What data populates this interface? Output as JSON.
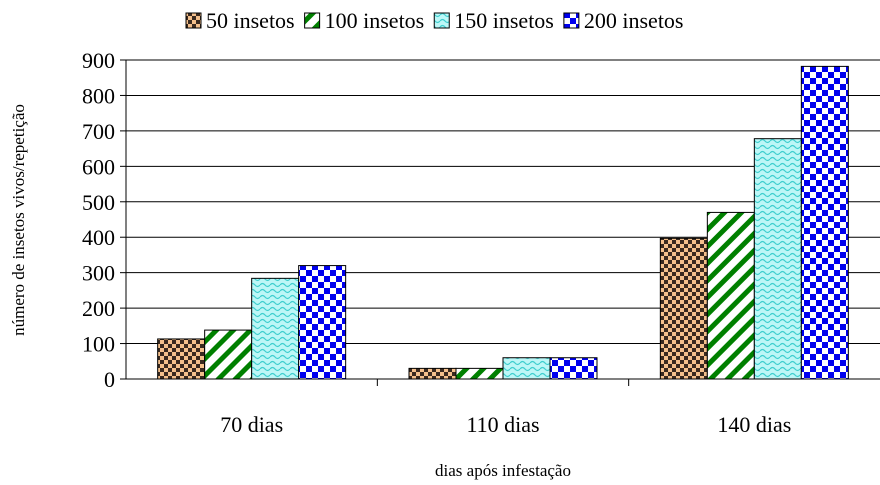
{
  "chart_data": {
    "type": "bar",
    "categories": [
      "70 dias",
      "110 dias",
      "140 dias"
    ],
    "series": [
      {
        "name": "50 insetos",
        "values": [
          113,
          30,
          397
        ],
        "color": "#f4c08c",
        "pattern": "checker-dark"
      },
      {
        "name": "100 insetos",
        "values": [
          138,
          30,
          470
        ],
        "color": "#008000",
        "pattern": "diagonal-stripes"
      },
      {
        "name": "150 insetos",
        "values": [
          284,
          60,
          678
        ],
        "color": "#9ff4f4",
        "pattern": "waves"
      },
      {
        "name": "200 insetos",
        "values": [
          320,
          60,
          882
        ],
        "color": "#0000ff",
        "pattern": "checker-blue"
      }
    ],
    "xlabel": "dias após infestação",
    "ylabel": "número de insetos vivos/repetição",
    "ylim": [
      0,
      900
    ],
    "yticks": [
      0,
      100,
      200,
      300,
      400,
      500,
      600,
      700,
      800,
      900
    ],
    "grid": true,
    "legend_position": "top"
  }
}
